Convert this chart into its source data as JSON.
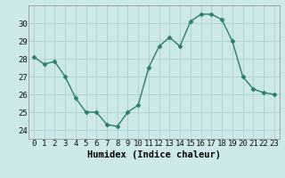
{
  "x": [
    0,
    1,
    2,
    3,
    4,
    5,
    6,
    7,
    8,
    9,
    10,
    11,
    12,
    13,
    14,
    15,
    16,
    17,
    18,
    19,
    20,
    21,
    22,
    23
  ],
  "y": [
    28.1,
    27.7,
    27.85,
    27.0,
    25.8,
    25.0,
    25.0,
    24.3,
    24.2,
    25.0,
    25.4,
    27.5,
    28.7,
    29.2,
    28.7,
    30.1,
    30.5,
    30.5,
    30.2,
    29.0,
    27.0,
    26.3,
    26.1,
    26.0
  ],
  "xlabel": "Humidex (Indice chaleur)",
  "line_color": "#2d7d6e",
  "marker": "D",
  "marker_size": 2.5,
  "bg_color": "#cce8e8",
  "grid_color": "#aacfcf",
  "ylim": [
    23.5,
    31.0
  ],
  "xlim": [
    -0.5,
    23.5
  ],
  "yticks": [
    24,
    25,
    26,
    27,
    28,
    29,
    30
  ],
  "xticks": [
    0,
    1,
    2,
    3,
    4,
    5,
    6,
    7,
    8,
    9,
    10,
    11,
    12,
    13,
    14,
    15,
    16,
    17,
    18,
    19,
    20,
    21,
    22,
    23
  ],
  "tick_fontsize": 6.5,
  "xlabel_fontsize": 7.5
}
